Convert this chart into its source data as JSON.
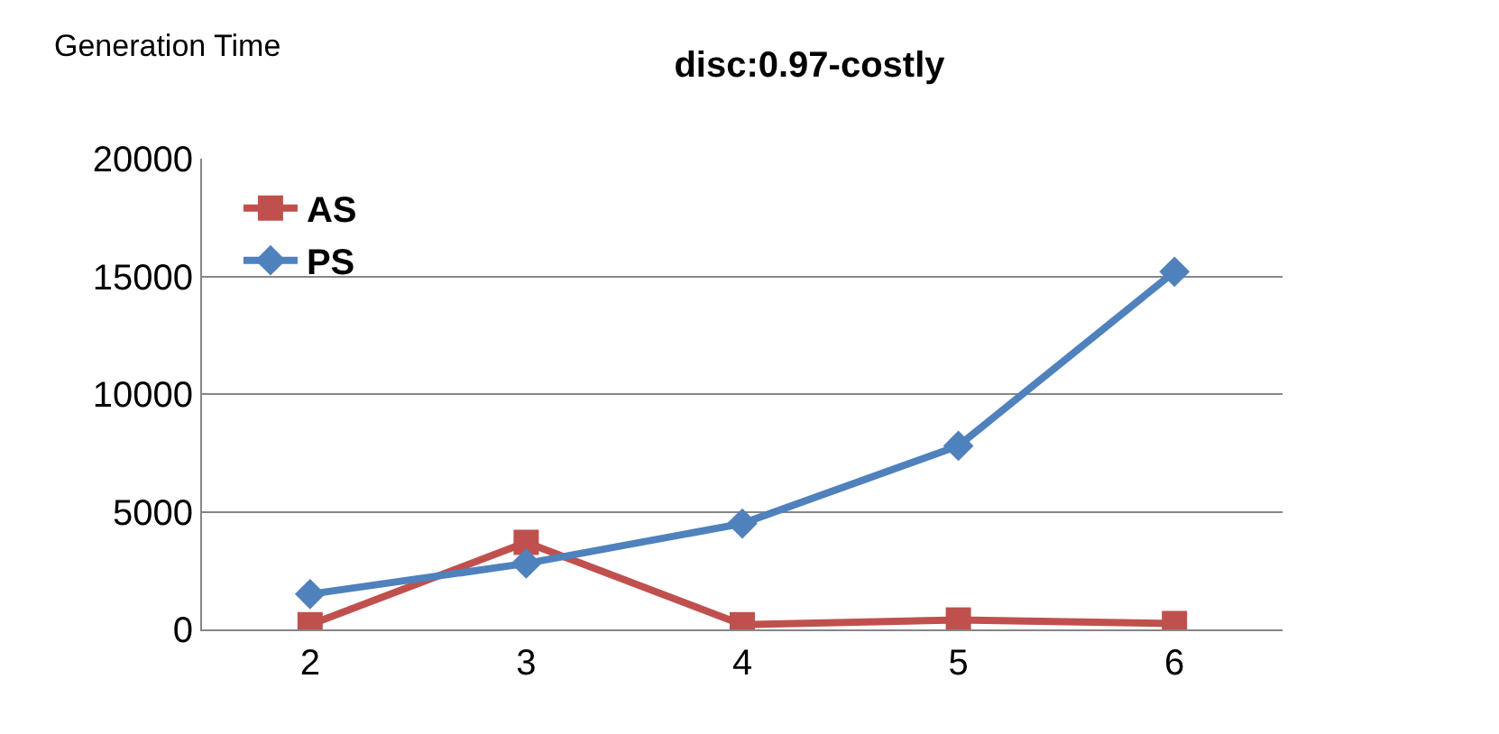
{
  "chart_data": {
    "type": "line",
    "title": "disc:0.97-costly",
    "ylabel": "Generation Time",
    "categories": [
      "2",
      "3",
      "4",
      "5",
      "6"
    ],
    "series": [
      {
        "name": "AS",
        "color": "#c0504d",
        "marker": "square",
        "values": [
          200,
          3700,
          200,
          400,
          250
        ]
      },
      {
        "name": "PS",
        "color": "#4f81bd",
        "marker": "diamond",
        "values": [
          1500,
          2800,
          4500,
          7800,
          15200
        ]
      }
    ],
    "ylim": [
      0,
      20000
    ],
    "yticks": [
      0,
      5000,
      10000,
      15000,
      20000
    ],
    "grid": "y",
    "legend": "top left",
    "line_style": "solid"
  }
}
